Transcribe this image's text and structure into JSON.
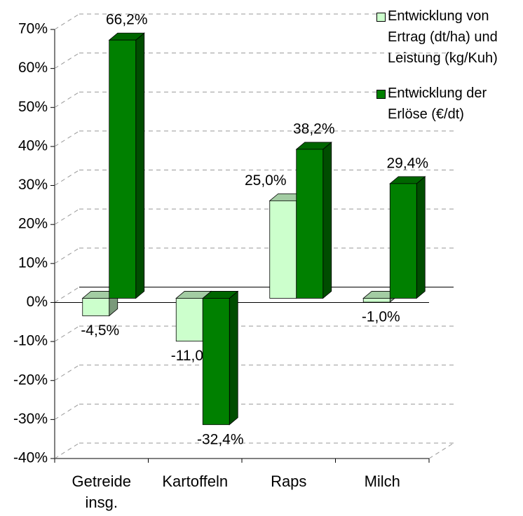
{
  "chart_data": {
    "type": "bar",
    "categories": [
      "Getreide insg.",
      "Kartoffeln",
      "Raps",
      "Milch"
    ],
    "series": [
      {
        "name": "Entwicklung von Ertrag (dt/ha) und Leistung (kg/Kuh)",
        "color": "#ccffcc",
        "values": [
          -4.5,
          -11.0,
          25.0,
          -1.0
        ],
        "value_labels": [
          "-4,5%",
          "-11,0%",
          "25,0%",
          "-1,0%"
        ]
      },
      {
        "name": "Entwicklung der Erlöse (€/dt)",
        "color": "#008000",
        "values": [
          66.2,
          -32.4,
          38.2,
          29.4
        ],
        "value_labels": [
          "66,2%",
          "-32,4%",
          "38,2%",
          "29,4%"
        ]
      }
    ],
    "ylim": [
      -40,
      70
    ],
    "yticks": [
      {
        "value": -40,
        "label": "-40%"
      },
      {
        "value": -30,
        "label": "-30%"
      },
      {
        "value": -20,
        "label": "-20%"
      },
      {
        "value": -10,
        "label": "-10%"
      },
      {
        "value": 0,
        "label": "0%"
      },
      {
        "value": 10,
        "label": "10%"
      },
      {
        "value": 20,
        "label": "20%"
      },
      {
        "value": 30,
        "label": "30%"
      },
      {
        "value": 40,
        "label": "40%"
      },
      {
        "value": 50,
        "label": "50%"
      },
      {
        "value": 60,
        "label": "60%"
      },
      {
        "value": 70,
        "label": "70%"
      }
    ],
    "grid": true,
    "legend": "top-right"
  }
}
